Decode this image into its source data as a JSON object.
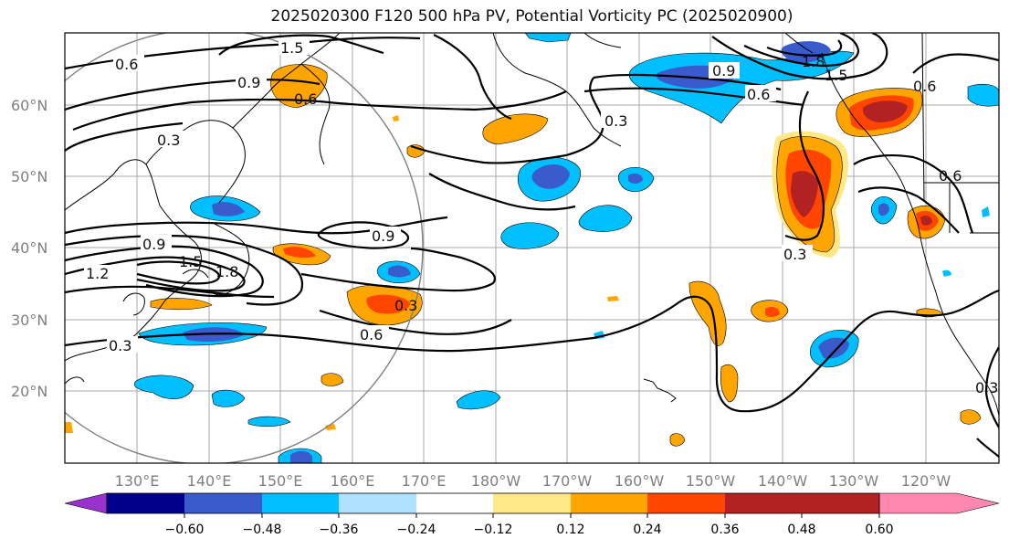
{
  "title": "2025020300 F120 500 hPa PV, Potential Vorticity PC (2025020900)",
  "lat_labels": [
    "60°N",
    "50°N",
    "40°N",
    "30°N",
    "20°N"
  ],
  "lon_labels": [
    "130°E",
    "140°E",
    "150°E",
    "160°E",
    "170°E",
    "180°W",
    "170°W",
    "160°W",
    "150°W",
    "140°W",
    "130°W",
    "120°W"
  ],
  "colorbar": {
    "colors": [
      "#9932CC",
      "#00008B",
      "#3A5BCC",
      "#00BFFF",
      "#B0E0FF",
      "#FFFFFF",
      "#FFE885",
      "#FFA500",
      "#FF4500",
      "#B22222",
      "#FF88B0"
    ],
    "tick_labels": [
      "−0.60",
      "−0.48",
      "−0.36",
      "−0.24",
      "−0.12",
      "0.12",
      "0.24",
      "0.36",
      "0.48",
      "0.60"
    ]
  },
  "contour_labels": [
    "0.6",
    "1.5",
    "0.9",
    "0.3",
    "0.6",
    "0.9",
    "0.6",
    "0.3",
    "1.8",
    "1.5",
    "0.6",
    "0.9",
    "1.2",
    "1.5",
    "1.8",
    "0.9",
    "0.3",
    "0.6",
    "0.3",
    "0.3",
    "0.6",
    "0.3"
  ]
}
